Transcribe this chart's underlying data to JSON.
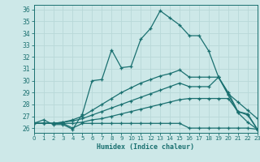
{
  "xlabel": "Humidex (Indice chaleur)",
  "background_color": "#cde8e8",
  "line_color": "#1a7070",
  "grid_color": "#b8d8d8",
  "xlim": [
    0,
    23
  ],
  "ylim": [
    25.6,
    36.4
  ],
  "xticks": [
    0,
    1,
    2,
    3,
    4,
    5,
    6,
    7,
    8,
    9,
    10,
    11,
    12,
    13,
    14,
    15,
    16,
    17,
    18,
    19,
    20,
    21,
    22,
    23
  ],
  "yticks": [
    26,
    27,
    28,
    29,
    30,
    31,
    32,
    33,
    34,
    35,
    36
  ],
  "lines": [
    [
      26.4,
      26.7,
      26.3,
      26.3,
      25.9,
      27.2,
      30.0,
      30.1,
      32.6,
      31.1,
      31.2,
      33.5,
      34.4,
      35.9,
      35.3,
      34.7,
      33.8,
      33.8,
      32.5,
      30.3,
      28.8,
      27.3,
      26.5,
      25.9
    ],
    [
      26.4,
      26.4,
      26.4,
      26.4,
      26.0,
      26.4,
      26.4,
      26.4,
      26.4,
      26.4,
      26.4,
      26.4,
      26.4,
      26.4,
      26.4,
      26.4,
      26.0,
      26.0,
      26.0,
      26.0,
      26.0,
      26.0,
      26.0,
      25.9
    ],
    [
      26.4,
      26.4,
      26.4,
      26.4,
      26.4,
      26.5,
      26.7,
      26.8,
      27.0,
      27.2,
      27.4,
      27.6,
      27.8,
      28.0,
      28.2,
      28.4,
      28.5,
      28.5,
      28.5,
      28.5,
      28.5,
      27.4,
      27.2,
      25.9
    ],
    [
      26.4,
      26.4,
      26.4,
      26.5,
      26.6,
      26.8,
      27.1,
      27.4,
      27.7,
      28.0,
      28.3,
      28.6,
      28.9,
      29.2,
      29.5,
      29.8,
      29.5,
      29.5,
      29.5,
      30.3,
      29.0,
      27.4,
      27.1,
      25.9
    ],
    [
      26.4,
      26.4,
      26.4,
      26.5,
      26.7,
      27.0,
      27.5,
      28.0,
      28.5,
      29.0,
      29.4,
      29.8,
      30.1,
      30.4,
      30.6,
      30.9,
      30.3,
      30.3,
      30.3,
      30.3,
      28.9,
      28.2,
      27.5,
      26.8
    ]
  ]
}
